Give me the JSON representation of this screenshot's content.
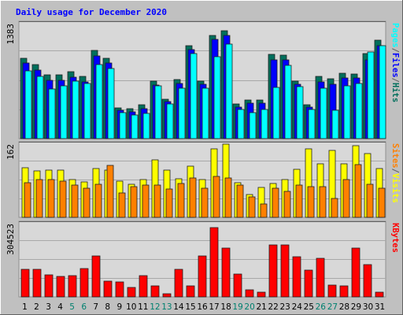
{
  "chart_data": {
    "type": "bar",
    "title": "Daily usage for December 2020",
    "categories": [
      "1",
      "2",
      "3",
      "4",
      "5",
      "6",
      "7",
      "8",
      "9",
      "10",
      "11",
      "12",
      "13",
      "14",
      "15",
      "16",
      "17",
      "18",
      "19",
      "20",
      "21",
      "22",
      "23",
      "24",
      "25",
      "26",
      "27",
      "28",
      "29",
      "30",
      "31"
    ],
    "weekend_days": [
      "5",
      "6",
      "12",
      "13",
      "19",
      "20",
      "26",
      "27"
    ],
    "panels": [
      {
        "name": "pages-files-hits",
        "ymax": 1383,
        "ymax_label": "1383",
        "legend": [
          "Pages",
          "/",
          "Files",
          "/",
          "Hits"
        ],
        "series": [
          {
            "name": "Hits",
            "color": "#006f5c",
            "values": [
              960,
              880,
              760,
              760,
              795,
              745,
              1052,
              962,
              365,
              355,
              405,
              690,
              475,
              710,
              1110,
              690,
              1235,
              1290,
              415,
              460,
              465,
              1010,
              1000,
              690,
              400,
              740,
              715,
              780,
              775,
              1015,
              1175
            ]
          },
          {
            "name": "Files",
            "color": "#0000ff",
            "values": [
              900,
              820,
              700,
              700,
              730,
              680,
              990,
              900,
              340,
              320,
              355,
              640,
              440,
              660,
              1060,
              650,
              1190,
              1230,
              380,
              425,
              425,
              940,
              940,
              650,
              375,
              680,
              650,
              720,
              720,
              945,
              1110
            ]
          },
          {
            "name": "Pages",
            "color": "#00ffff",
            "values": [
              805,
              740,
              595,
              635,
              685,
              655,
              885,
              835,
              310,
              280,
              300,
              630,
              410,
              605,
              1020,
              605,
              975,
              1125,
              350,
              310,
              345,
              610,
              875,
              620,
              345,
              605,
              335,
              635,
              660,
              1035,
              1110
            ]
          }
        ]
      },
      {
        "name": "sites-visits",
        "ymax": 162,
        "ymax_label": "162",
        "legend": [
          "Sites",
          "/",
          "Visits"
        ],
        "series": [
          {
            "name": "Visits",
            "color": "#ffff00",
            "values": [
              108,
              102,
              103,
              104,
              82,
              78,
              106,
              104,
              80,
              73,
              82,
              126,
              104,
              84,
              112,
              82,
              150,
              160,
              75,
              50,
              65,
              74,
              83,
              105,
              150,
              117,
              146,
              118,
              156,
              140,
              106
            ]
          },
          {
            "name": "Sites",
            "color": "#ff8000",
            "values": [
              75,
              82,
              82,
              80,
              70,
              63,
              73,
              114,
              53,
              68,
              70,
              71,
              62,
              74,
              86,
              64,
              90,
              86,
              70,
              44,
              30,
              64,
              57,
              70,
              68,
              67,
              41,
              83,
              116,
              73,
              64
            ]
          }
        ]
      },
      {
        "name": "kbytes",
        "ymax": 304523,
        "ymax_label": "304523",
        "legend": [
          "KBytes"
        ],
        "series": [
          {
            "name": "KBytes",
            "color": "#ff0000",
            "values": [
              113000,
              113000,
              90000,
              85000,
              88000,
              118000,
              170000,
              65000,
              60000,
              40000,
              88000,
              45000,
              13000,
              115000,
              45000,
              170000,
              286000,
              200000,
              95000,
              30000,
              20000,
              213000,
              215000,
              165000,
              110000,
              160000,
              48000,
              45000,
              200000,
              132000,
              20000
            ]
          }
        ]
      }
    ]
  },
  "colors": {
    "background": "#c0c0c0",
    "plot_background": "#d8d8d8",
    "title": "#0000ff",
    "weekend_label": "#00806f",
    "weekday_label": "#000000"
  }
}
